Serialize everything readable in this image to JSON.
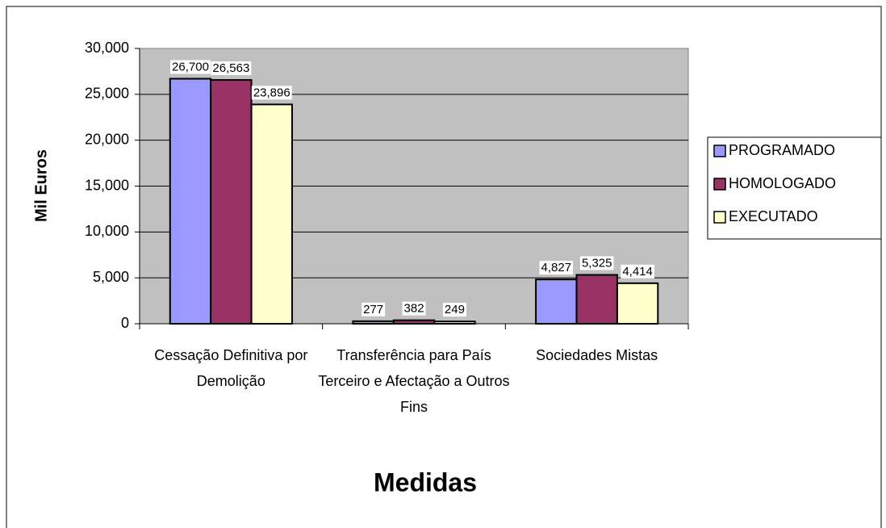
{
  "chart_data": {
    "type": "bar",
    "categories": [
      "Cessação Definitiva por Demolição",
      "Transferência para País Terceiro e Afectação a Outros Fins",
      "Sociedades Mistas"
    ],
    "series": [
      {
        "name": "PROGRAMADO",
        "color": "#9999ff",
        "values": [
          26700,
          277,
          4827
        ],
        "value_labels": [
          "26,700",
          "277",
          "4,827"
        ]
      },
      {
        "name": "HOMOLOGADO",
        "color": "#993366",
        "values": [
          26563,
          382,
          5325
        ],
        "value_labels": [
          "26,563",
          "382",
          "5,325"
        ]
      },
      {
        "name": "EXECUTADO",
        "color": "#ffffcc",
        "values": [
          23896,
          249,
          4414
        ],
        "value_labels": [
          "23,896",
          "249",
          "4,414"
        ]
      }
    ],
    "ylabel": "Mil Euros",
    "xlabel": "Medidas",
    "ylim": [
      0,
      30000
    ],
    "yticks": [
      0,
      {
        "value": 5000,
        "label": "5,000"
      },
      {
        "value": 10000,
        "label": "10,000"
      },
      {
        "value": 15000,
        "label": "15,000"
      },
      {
        "value": 20000,
        "label": "20,000"
      },
      {
        "value": 25000,
        "label": "25,000"
      },
      {
        "value": 30000,
        "label": "30,000"
      }
    ],
    "grid": true,
    "legend": "right"
  }
}
